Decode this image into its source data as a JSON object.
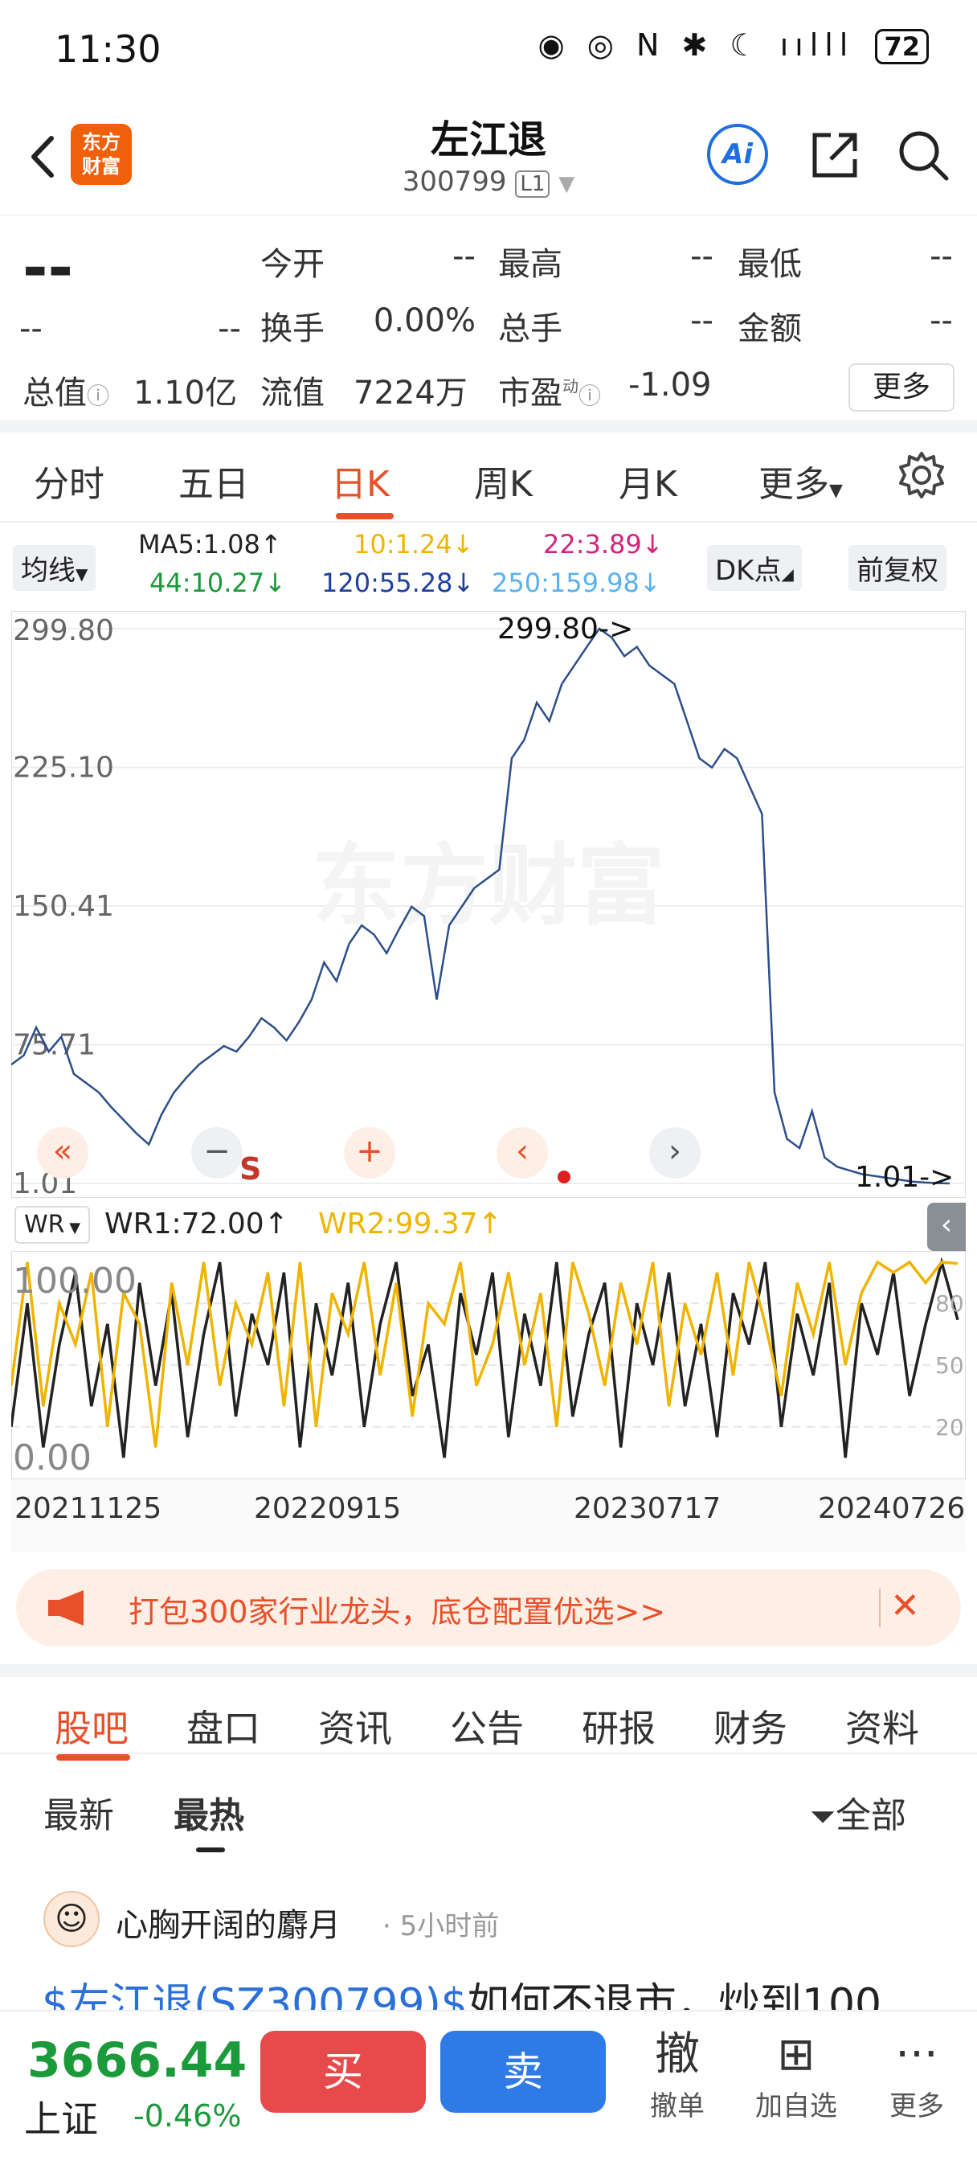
{
  "status": {
    "time": "11:30",
    "battery": "72",
    "icons": "◉ ◎ N ✱ ☾ ıılll"
  },
  "header": {
    "logo_line1": "东方",
    "logo_line2": "财富",
    "stock_name": "左江退",
    "stock_code": "300799",
    "level": "L1",
    "ai_label": "Ai"
  },
  "quote": {
    "price": "--",
    "change": "--",
    "change_pct": "--",
    "open_label": "今开",
    "open": "--",
    "high_label": "最高",
    "high": "--",
    "low_label": "最低",
    "low": "--",
    "turnover_label": "换手",
    "turnover": "0.00%",
    "volume_label": "总手",
    "volume": "--",
    "amount_label": "金额",
    "amount": "--",
    "mktcap_label": "总值",
    "mktcap": "1.10亿",
    "float_label": "流值",
    "float": "7224万",
    "pe_label": "市盈",
    "pe_super": "动",
    "pe": "-1.09",
    "more_label": "更多"
  },
  "period_tabs": [
    "分时",
    "五日",
    "日K",
    "周K",
    "月K",
    "更多"
  ],
  "active_period": "日K",
  "indicators": {
    "ma_select": "均线",
    "ma5": "MA5:1.08↑",
    "ma10": "10:1.24↓",
    "ma22": "22:3.89↓",
    "ma44": "44:10.27↓",
    "ma120": "120:55.28↓",
    "ma250": "250:159.98↓",
    "dk_label": "DK点",
    "adjust_label": "前复权",
    "colors": {
      "ma5": "#222222",
      "ma10": "#f0b400",
      "ma22": "#d4237a",
      "ma44": "#1a9a3a",
      "ma120": "#1f3fa0",
      "ma250": "#5ab0f0"
    }
  },
  "chart_data": [
    {
      "type": "line",
      "title": "",
      "y_ticks": [
        "299.80",
        "225.10",
        "150.41",
        "75.71",
        "1.01"
      ],
      "ylim": [
        1.01,
        299.8
      ],
      "max_label": "299.80",
      "min_label": "1.01",
      "watermark": "东方财富",
      "x_date_ticks": [
        "20211125",
        "20220915",
        "20230717",
        "20240726"
      ],
      "series": [
        {
          "values": [
            65,
            70,
            85,
            72,
            80,
            60,
            55,
            50,
            42,
            35,
            28,
            22,
            38,
            50,
            58,
            65,
            70,
            75,
            72,
            80,
            90,
            85,
            78,
            88,
            100,
            120,
            110,
            130,
            140,
            135,
            125,
            138,
            150,
            145,
            100,
            140,
            150,
            160,
            165,
            170,
            230,
            240,
            260,
            250,
            270,
            280,
            290,
            299.8,
            295,
            285,
            290,
            280,
            275,
            270,
            250,
            230,
            225,
            235,
            230,
            215,
            200,
            50,
            25,
            20,
            40,
            15,
            10,
            8,
            6,
            5,
            4,
            3,
            2,
            1.5,
            1.2,
            1.01
          ]
        }
      ]
    },
    {
      "type": "line",
      "title": "",
      "y_ticks": [
        "100.00",
        "0.00"
      ],
      "right_ticks": [
        "80",
        "50",
        "20"
      ],
      "ylim": [
        0,
        100
      ],
      "series": [
        {
          "name": "WR1",
          "values": [
            20,
            80,
            10,
            60,
            95,
            30,
            70,
            5,
            90,
            40,
            85,
            15,
            65,
            100,
            25,
            75,
            50,
            95,
            10,
            80,
            45,
            90,
            20,
            70,
            100,
            35,
            60,
            5,
            85,
            55,
            95,
            15,
            75,
            40,
            100,
            25,
            65,
            90,
            10,
            80,
            50,
            95,
            30,
            70,
            15,
            85,
            60,
            100,
            20,
            75,
            45,
            90,
            5,
            80,
            55,
            95,
            35,
            70,
            100,
            72
          ]
        },
        {
          "name": "WR2",
          "values": [
            40,
            100,
            30,
            80,
            60,
            95,
            20,
            85,
            70,
            10,
            90,
            50,
            100,
            40,
            80,
            60,
            95,
            30,
            100,
            20,
            85,
            65,
            100,
            45,
            90,
            25,
            80,
            70,
            100,
            40,
            60,
            95,
            50,
            85,
            20,
            100,
            75,
            40,
            90,
            60,
            100,
            30,
            80,
            55,
            95,
            45,
            100,
            70,
            35,
            90,
            65,
            100,
            50,
            85,
            100,
            95,
            100,
            90,
            100,
            99.37
          ]
        }
      ]
    }
  ],
  "wr": {
    "select": "WR",
    "wr1": "WR1:72.00↑",
    "wr2": "WR2:99.37↑",
    "wr1_color": "#222222",
    "wr2_color": "#f0b400"
  },
  "chart_controls": [
    "«",
    "−",
    "+",
    "‹",
    "›"
  ],
  "sell_marker": "S",
  "banner": {
    "text": "打包300家行业龙头，底仓配置优选>>"
  },
  "section_tabs": [
    "股吧",
    "盘口",
    "资讯",
    "公告",
    "研报",
    "财务",
    "资料"
  ],
  "active_section": "股吧",
  "feed": {
    "tabs": [
      "最新",
      "最热"
    ],
    "active_tab": "最热",
    "filter_label": "全部",
    "post": {
      "user": "心胸开阔的麝月",
      "time": "· 5小时前",
      "tag": "$左江退(SZ300799)$",
      "text": "如何不退市，炒到100"
    }
  },
  "bottom": {
    "index_value": "3666.44",
    "index_name": "上证",
    "index_change": "-0.46%",
    "buy_label": "买",
    "sell_label": "卖",
    "cancel_icon": "撤",
    "cancel_label": "撤单",
    "watch_label": "加自选",
    "more_label": "更多"
  }
}
